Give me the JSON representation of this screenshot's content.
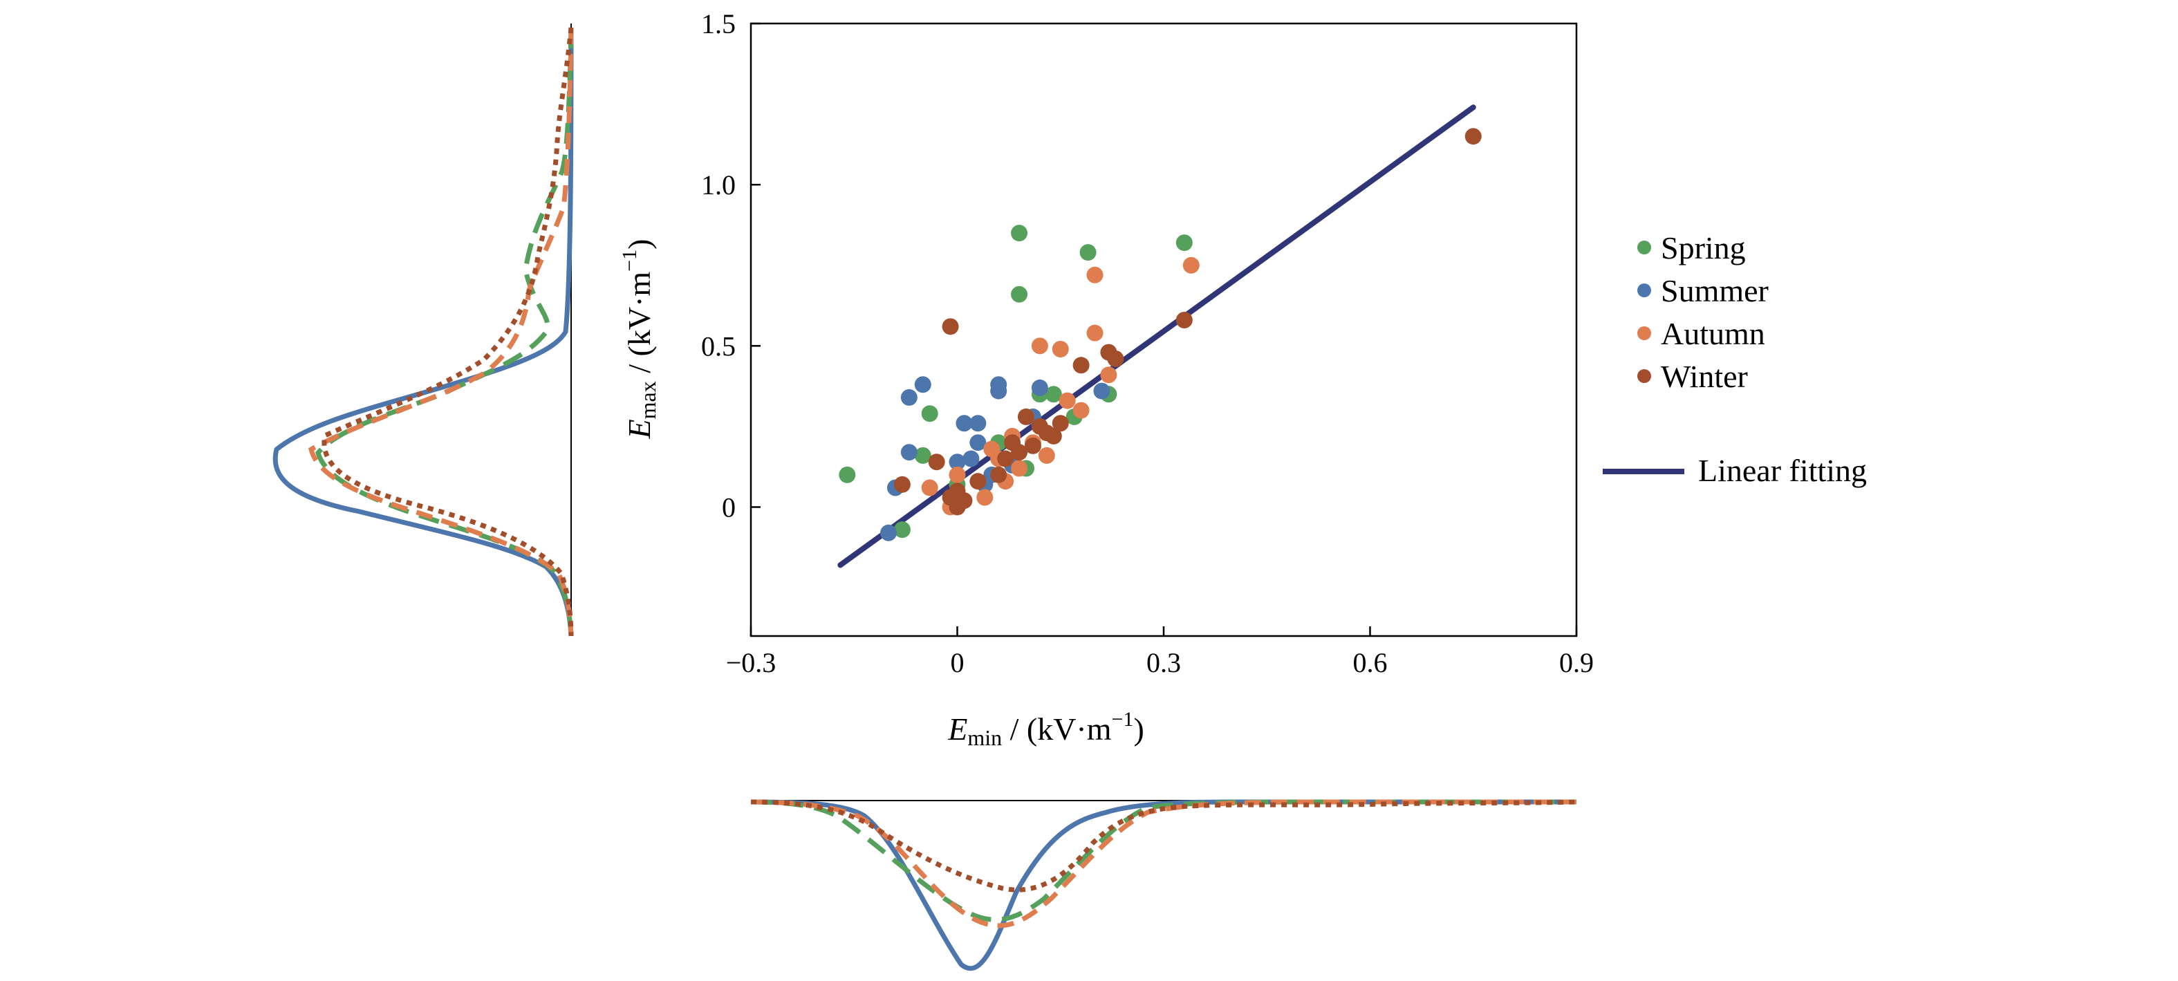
{
  "chart_data": {
    "type": "scatter",
    "xlabel": {
      "var": "E",
      "sub": "min",
      "unit": " / (kV·m",
      "sup": "−1",
      "close": ")"
    },
    "ylabel": {
      "var": "E",
      "sub": "max",
      "unit": " / (kV·m",
      "sup": "−1",
      "close": ")"
    },
    "xlim": [
      -0.3,
      0.9
    ],
    "ylim": [
      -0.4,
      1.5
    ],
    "xticks": [
      {
        "value": -0.3,
        "label": "−0.3"
      },
      {
        "value": 0,
        "label": "0"
      },
      {
        "value": 0.3,
        "label": "0.3"
      },
      {
        "value": 0.6,
        "label": "0.6"
      },
      {
        "value": 0.9,
        "label": "0.9"
      }
    ],
    "yticks": [
      {
        "value": 0,
        "label": "0"
      },
      {
        "value": 0.5,
        "label": "0.5"
      },
      {
        "value": 1.0,
        "label": "1.0"
      },
      {
        "value": 1.5,
        "label": "1.5"
      }
    ],
    "series": [
      {
        "name": "Spring",
        "color": "#55a05a",
        "points": [
          [
            -0.16,
            0.1
          ],
          [
            0.09,
            0.85
          ],
          [
            0.09,
            0.66
          ],
          [
            0.19,
            0.79
          ],
          [
            0.33,
            0.82
          ],
          [
            -0.04,
            0.29
          ],
          [
            -0.05,
            0.16
          ],
          [
            0.14,
            0.35
          ],
          [
            0.22,
            0.35
          ],
          [
            0.12,
            0.35
          ],
          [
            -0.08,
            -0.07
          ],
          [
            0.0,
            0.07
          ],
          [
            0.06,
            0.2
          ],
          [
            0.17,
            0.28
          ],
          [
            0.1,
            0.12
          ]
        ]
      },
      {
        "name": "Summer",
        "color": "#4d76ac",
        "points": [
          [
            -0.05,
            0.38
          ],
          [
            -0.07,
            0.34
          ],
          [
            0.06,
            0.38
          ],
          [
            0.06,
            0.36
          ],
          [
            0.12,
            0.37
          ],
          [
            0.01,
            0.26
          ],
          [
            0.03,
            0.26
          ],
          [
            -0.09,
            0.06
          ],
          [
            -0.1,
            -0.08
          ],
          [
            -0.07,
            0.17
          ],
          [
            0.0,
            0.14
          ],
          [
            0.02,
            0.15
          ],
          [
            0.04,
            0.07
          ],
          [
            0.21,
            0.36
          ],
          [
            0.11,
            0.28
          ],
          [
            0.03,
            0.2
          ],
          [
            0.08,
            0.13
          ],
          [
            0.05,
            0.1
          ]
        ]
      },
      {
        "name": "Autumn",
        "color": "#e07d4f",
        "points": [
          [
            0.34,
            0.75
          ],
          [
            0.2,
            0.72
          ],
          [
            0.12,
            0.5
          ],
          [
            0.15,
            0.49
          ],
          [
            0.2,
            0.54
          ],
          [
            0.22,
            0.41
          ],
          [
            -0.04,
            0.06
          ],
          [
            0.0,
            0.1
          ],
          [
            0.05,
            0.18
          ],
          [
            0.08,
            0.22
          ],
          [
            0.1,
            0.28
          ],
          [
            0.16,
            0.33
          ],
          [
            0.04,
            0.03
          ],
          [
            0.09,
            0.12
          ],
          [
            0.13,
            0.16
          ],
          [
            0.06,
            0.15
          ],
          [
            -0.01,
            0.0
          ],
          [
            0.07,
            0.08
          ],
          [
            0.11,
            0.2
          ],
          [
            0.18,
            0.3
          ]
        ]
      },
      {
        "name": "Winter",
        "color": "#a24e2a",
        "points": [
          [
            -0.01,
            0.56
          ],
          [
            0.75,
            1.15
          ],
          [
            0.33,
            0.58
          ],
          [
            0.22,
            0.48
          ],
          [
            0.23,
            0.46
          ],
          [
            0.18,
            0.44
          ],
          [
            -0.03,
            0.14
          ],
          [
            0.0,
            0.05
          ],
          [
            0.01,
            0.02
          ],
          [
            0.0,
            0.0
          ],
          [
            -0.01,
            0.03
          ],
          [
            0.06,
            0.1
          ],
          [
            0.07,
            0.15
          ],
          [
            0.09,
            0.17
          ],
          [
            0.11,
            0.19
          ],
          [
            0.13,
            0.23
          ],
          [
            0.15,
            0.26
          ],
          [
            0.1,
            0.28
          ],
          [
            -0.08,
            0.07
          ],
          [
            0.03,
            0.08
          ],
          [
            0.08,
            0.2
          ],
          [
            0.12,
            0.25
          ],
          [
            0.14,
            0.22
          ]
        ]
      }
    ],
    "fit": {
      "name": "Linear fitting",
      "color": "#2f3577",
      "x": [
        -0.17,
        0.75
      ],
      "y": [
        -0.18,
        1.24
      ]
    },
    "legend_placement": "right",
    "grid": false,
    "marginals": {
      "top_curves_style": [
        "solid",
        "dashed",
        "dashed",
        "dotted"
      ],
      "side_curves_style": [
        "solid",
        "dashed",
        "dashed",
        "dotted"
      ]
    }
  }
}
